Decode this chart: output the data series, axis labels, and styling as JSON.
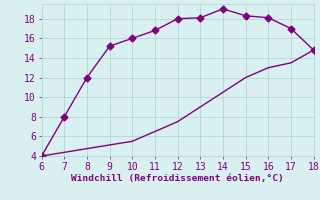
{
  "xlabel": "Windchill (Refroidissement éolien,°C)",
  "upper_line_x": [
    6,
    7,
    8,
    9,
    10,
    11,
    12,
    13,
    14,
    15,
    16,
    17,
    18
  ],
  "upper_line_y": [
    4.0,
    8.0,
    12.0,
    15.2,
    16.0,
    16.8,
    18.0,
    18.1,
    19.0,
    18.3,
    18.1,
    17.0,
    14.8
  ],
  "lower_line_x": [
    6,
    10,
    11,
    12,
    13,
    14,
    15,
    16,
    17,
    18
  ],
  "lower_line_y": [
    4.0,
    5.5,
    6.5,
    7.5,
    9.0,
    10.5,
    12.0,
    13.0,
    13.5,
    14.8
  ],
  "line_color": "#800080",
  "bg_color": "#d9f0f0",
  "grid_color": "#b8d8dc",
  "tick_color": "#800080",
  "label_color": "#800080",
  "xlim": [
    6,
    18
  ],
  "ylim": [
    4,
    19.5
  ],
  "xticks": [
    6,
    7,
    8,
    9,
    10,
    11,
    12,
    13,
    14,
    15,
    16,
    17,
    18
  ],
  "yticks": [
    4,
    6,
    8,
    10,
    12,
    14,
    16,
    18
  ],
  "marker": "D",
  "markersize": 3.5,
  "linewidth": 1.0,
  "tick_fontsize": 7.0,
  "xlabel_fontsize": 6.8
}
